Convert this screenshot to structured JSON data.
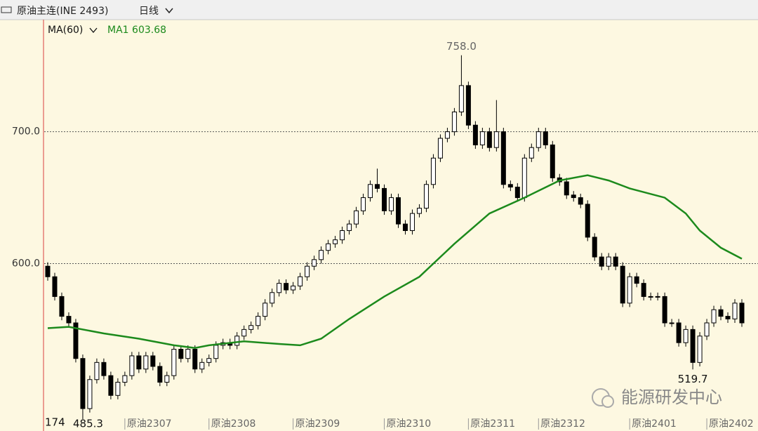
{
  "header": {
    "title": "原油主连(INE 2493)",
    "period": "日线"
  },
  "chart_data": {
    "type": "candlestick",
    "indicator": "MA(60)",
    "xlim": [
      -0.5,
      99.5
    ],
    "ylim": [
      473,
      785
    ],
    "yticks": [
      {
        "value": 700,
        "label": "700.0"
      },
      {
        "value": 600,
        "label": "600.0"
      }
    ],
    "xticks": [
      {
        "value": 11,
        "label": "原油2307"
      },
      {
        "value": 23,
        "label": "原油2308"
      },
      {
        "value": 35,
        "label": "原油2309"
      },
      {
        "value": 48,
        "label": "原油2310"
      },
      {
        "value": 60,
        "label": "原油2311"
      },
      {
        "value": 70,
        "label": "原油2312"
      },
      {
        "value": 83,
        "label": "原油2401"
      },
      {
        "value": 94,
        "label": "原油2402"
      }
    ],
    "grid": true,
    "up_color": "#ffffff",
    "down_color": "#000000",
    "edge_color": "#000000",
    "open": [
      598,
      590,
      575,
      560,
      555,
      528,
      490,
      512,
      525,
      515,
      500,
      510,
      515,
      530,
      520,
      530,
      522,
      510,
      515,
      535,
      528,
      535,
      520,
      525,
      528,
      538,
      540,
      538,
      545,
      550,
      553,
      560,
      570,
      578,
      585,
      580,
      583,
      590,
      598,
      603,
      610,
      615,
      618,
      625,
      630,
      640,
      650,
      660,
      657,
      640,
      650,
      630,
      625,
      638,
      642,
      660,
      680,
      695,
      700,
      715,
      735,
      705,
      690,
      700,
      688,
      700,
      660,
      658,
      650,
      680,
      688,
      700,
      690,
      665,
      662,
      652,
      650,
      645,
      620,
      605,
      598,
      605,
      598,
      570,
      590,
      585,
      575,
      575,
      575,
      555,
      555,
      540,
      550,
      525,
      545,
      555,
      565,
      560,
      558,
      570
    ],
    "high": [
      601,
      593,
      578,
      563,
      558,
      531,
      515,
      528,
      528,
      518,
      513,
      518,
      533,
      533,
      533,
      533,
      525,
      518,
      538,
      538,
      538,
      538,
      528,
      531,
      541,
      543,
      543,
      548,
      553,
      556,
      563,
      573,
      581,
      588,
      588,
      586,
      593,
      601,
      606,
      613,
      618,
      621,
      628,
      633,
      643,
      653,
      663,
      672,
      660,
      653,
      653,
      633,
      641,
      645,
      663,
      683,
      698,
      703,
      718,
      758,
      738,
      708,
      703,
      703,
      724,
      703,
      663,
      661,
      683,
      691,
      703,
      703,
      693,
      668,
      665,
      655,
      653,
      648,
      623,
      608,
      608,
      608,
      601,
      593,
      593,
      588,
      578,
      578,
      578,
      558,
      558,
      553,
      553,
      548,
      558,
      568,
      568,
      563,
      573,
      573
    ],
    "low": [
      587,
      572,
      557,
      552,
      525,
      482,
      487,
      509,
      512,
      497,
      497,
      507,
      512,
      517,
      517,
      519,
      507,
      507,
      512,
      525,
      525,
      517,
      517,
      522,
      525,
      535,
      535,
      535,
      542,
      547,
      550,
      557,
      567,
      575,
      577,
      577,
      580,
      587,
      595,
      600,
      607,
      612,
      615,
      622,
      627,
      637,
      647,
      654,
      637,
      637,
      627,
      622,
      622,
      635,
      639,
      657,
      677,
      692,
      697,
      712,
      702,
      687,
      687,
      685,
      685,
      657,
      655,
      647,
      647,
      677,
      685,
      687,
      662,
      659,
      649,
      647,
      642,
      617,
      602,
      595,
      595,
      595,
      567,
      567,
      582,
      572,
      572,
      572,
      552,
      552,
      537,
      537,
      519.7,
      522,
      542,
      552,
      557,
      555,
      555,
      552
    ],
    "close": [
      590,
      575,
      560,
      555,
      528,
      490,
      512,
      525,
      515,
      500,
      510,
      515,
      530,
      520,
      530,
      522,
      510,
      515,
      535,
      528,
      535,
      520,
      525,
      528,
      538,
      540,
      538,
      545,
      550,
      553,
      560,
      570,
      578,
      585,
      580,
      583,
      590,
      598,
      603,
      610,
      615,
      618,
      625,
      630,
      640,
      650,
      660,
      657,
      640,
      650,
      630,
      625,
      638,
      642,
      660,
      680,
      695,
      700,
      715,
      735,
      705,
      690,
      700,
      688,
      700,
      660,
      658,
      650,
      680,
      688,
      700,
      690,
      665,
      662,
      652,
      650,
      645,
      620,
      605,
      598,
      605,
      598,
      570,
      590,
      585,
      575,
      575,
      575,
      555,
      555,
      540,
      550,
      525,
      545,
      555,
      565,
      560,
      558,
      570,
      555
    ],
    "ma": {
      "name": "MA1",
      "color": "#1c8a1c",
      "last_value": 603.68,
      "x": [
        0,
        3,
        8,
        13,
        18,
        21,
        23,
        28,
        33,
        36,
        39,
        43,
        48,
        53,
        58,
        63,
        68,
        73,
        77,
        80,
        83,
        88,
        91,
        93,
        96,
        99
      ],
      "values": [
        551,
        552,
        547,
        543,
        538,
        536,
        538,
        541,
        539,
        538,
        543,
        558,
        575,
        590,
        615,
        638,
        650,
        663,
        667,
        663,
        657,
        650,
        638,
        625,
        612,
        603.68
      ]
    },
    "annotations": [
      {
        "x": 59,
        "value": 758,
        "label": "758.0"
      },
      {
        "x": 92,
        "value": 519.7,
        "label": "519.7"
      }
    ],
    "corner_labels": [
      "174",
      "485.3"
    ]
  },
  "watermark": "能源研发中心"
}
